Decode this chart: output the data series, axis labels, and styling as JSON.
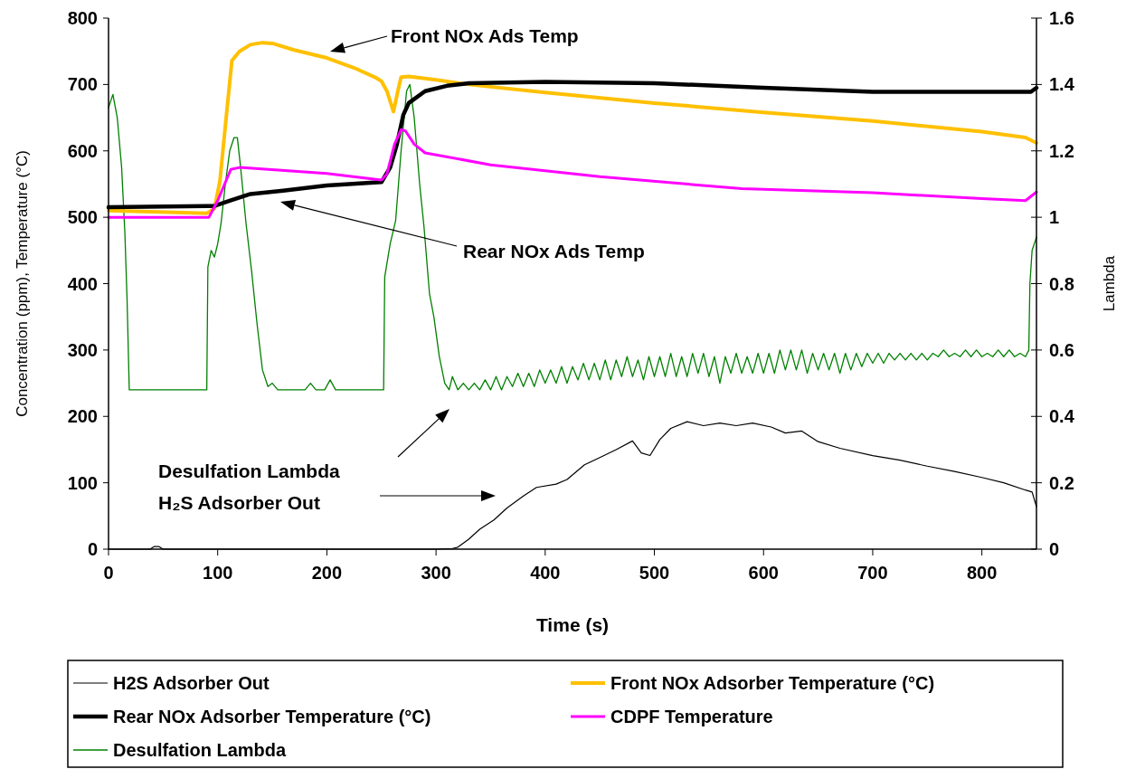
{
  "chart_data": {
    "type": "line",
    "xlabel": "Time (s)",
    "ylabel": "Concentration (ppm), Temperature (°C)",
    "y2label": "Lambda",
    "xlim": [
      0,
      850
    ],
    "xticks": [
      0,
      100,
      200,
      300,
      400,
      500,
      600,
      700,
      800
    ],
    "ylim": [
      0,
      800
    ],
    "yticks": [
      0,
      100,
      200,
      300,
      400,
      500,
      600,
      700,
      800
    ],
    "y2lim": [
      0,
      1.6
    ],
    "y2ticks": [
      0,
      0.2,
      0.4,
      0.6,
      0.8,
      1,
      1.2,
      1.4,
      1.6
    ],
    "legend": "bottom",
    "annotations": [
      "Front NOx Ads Temp",
      "Rear NOx Ads Temp",
      "Desulfation Lambda",
      "H₂S Adsorber Out"
    ],
    "series": [
      {
        "name": "H2S Adsorber Out",
        "color": "#000000",
        "x": [
          0,
          38,
          42,
          46,
          50,
          100,
          200,
          300,
          315,
          320,
          330,
          340,
          353,
          365,
          380,
          392,
          410,
          420,
          436,
          450,
          465,
          480,
          488,
          496,
          505,
          515,
          530,
          545,
          560,
          575,
          590,
          607,
          620,
          635,
          650,
          670,
          700,
          725,
          750,
          775,
          800,
          820,
          840,
          846,
          850
        ],
        "values": [
          0,
          0,
          4,
          4,
          0,
          0,
          0,
          0,
          1,
          3,
          15,
          30,
          44,
          62,
          80,
          93,
          98,
          105,
          127,
          138,
          150,
          163,
          145,
          141,
          165,
          182,
          192,
          186,
          190,
          186,
          190,
          184,
          175,
          178,
          162,
          152,
          141,
          134,
          125,
          117,
          108,
          100,
          89,
          86,
          64
        ]
      },
      {
        "name": "Front NOx Adsorber Temperature (°C)",
        "color": "#ffc000",
        "x": [
          0,
          90,
          97,
          102,
          108,
          113,
          120,
          130,
          141,
          150,
          170,
          200,
          225,
          244,
          250,
          255,
          261,
          265,
          268,
          275,
          300,
          330,
          400,
          500,
          600,
          700,
          800,
          840,
          850
        ],
        "values": [
          510,
          506,
          513,
          554,
          654,
          736,
          750,
          760,
          763,
          762,
          752,
          740,
          725,
          711,
          705,
          690,
          659,
          690,
          711,
          712,
          707,
          700,
          688,
          672,
          658,
          645,
          629,
          620,
          612
        ]
      },
      {
        "name": "Rear NOx Adsorber Temperature (°C)",
        "color": "#000000",
        "x": [
          0,
          90,
          97,
          111,
          130,
          160,
          200,
          250,
          258,
          264,
          270,
          275,
          290,
          310,
          330,
          400,
          500,
          600,
          700,
          800,
          845,
          850
        ],
        "values": [
          515,
          517,
          517,
          525,
          535,
          540,
          548,
          553,
          575,
          609,
          654,
          672,
          690,
          698,
          702,
          704,
          702,
          695,
          689,
          689,
          689,
          695
        ]
      },
      {
        "name": "CDPF Temperature",
        "color": "#ff00ff",
        "x": [
          0,
          92,
          100,
          112,
          120,
          200,
          250,
          255,
          262,
          268,
          272,
          280,
          290,
          350,
          450,
          580,
          700,
          800,
          840,
          850
        ],
        "values": [
          500,
          500,
          525,
          572,
          575,
          566,
          556,
          565,
          610,
          632,
          630,
          610,
          597,
          579,
          561,
          543,
          537,
          528,
          525,
          538
        ]
      },
      {
        "name": "Desulfation Lambda",
        "color": "#008000",
        "axis": "y2",
        "x": [
          0,
          4,
          8,
          12,
          15,
          17,
          19,
          40,
          60,
          90,
          91,
          94,
          97,
          100,
          103,
          107,
          111,
          115,
          118,
          121,
          126,
          131,
          136,
          141,
          146,
          150,
          155,
          180,
          185,
          190,
          198,
          203,
          208,
          252,
          253,
          258,
          263,
          268,
          273,
          276,
          280,
          285,
          289,
          294,
          298,
          303,
          308,
          312,
          315,
          320,
          325,
          330,
          335,
          340,
          345,
          350,
          355,
          360,
          365,
          370,
          375,
          380,
          385,
          390,
          395,
          400,
          405,
          410,
          415,
          420,
          425,
          430,
          435,
          440,
          445,
          450,
          455,
          460,
          465,
          470,
          475,
          480,
          485,
          490,
          495,
          500,
          505,
          510,
          515,
          520,
          525,
          530,
          535,
          540,
          545,
          550,
          555,
          560,
          565,
          570,
          575,
          580,
          585,
          590,
          595,
          600,
          605,
          610,
          615,
          620,
          625,
          630,
          635,
          640,
          645,
          650,
          655,
          660,
          665,
          670,
          675,
          680,
          685,
          690,
          695,
          700,
          705,
          710,
          715,
          720,
          725,
          730,
          735,
          740,
          745,
          750,
          755,
          760,
          765,
          770,
          775,
          780,
          785,
          790,
          795,
          800,
          805,
          810,
          815,
          820,
          825,
          830,
          835,
          840,
          843,
          844,
          846,
          850
        ],
        "values": [
          1.33,
          1.37,
          1.3,
          1.15,
          0.95,
          0.75,
          0.48,
          0.48,
          0.48,
          0.48,
          0.85,
          0.9,
          0.88,
          0.92,
          0.98,
          1.1,
          1.2,
          1.24,
          1.24,
          1.15,
          0.98,
          0.84,
          0.68,
          0.54,
          0.49,
          0.5,
          0.48,
          0.48,
          0.5,
          0.48,
          0.48,
          0.51,
          0.48,
          0.48,
          0.82,
          0.92,
          0.99,
          1.2,
          1.38,
          1.4,
          1.3,
          1.1,
          0.97,
          0.77,
          0.7,
          0.58,
          0.5,
          0.48,
          0.52,
          0.48,
          0.5,
          0.48,
          0.5,
          0.48,
          0.51,
          0.48,
          0.52,
          0.48,
          0.52,
          0.49,
          0.53,
          0.49,
          0.53,
          0.49,
          0.54,
          0.5,
          0.54,
          0.5,
          0.55,
          0.5,
          0.55,
          0.51,
          0.56,
          0.51,
          0.56,
          0.51,
          0.57,
          0.51,
          0.57,
          0.52,
          0.58,
          0.52,
          0.57,
          0.51,
          0.58,
          0.52,
          0.58,
          0.52,
          0.59,
          0.52,
          0.58,
          0.52,
          0.59,
          0.53,
          0.59,
          0.52,
          0.58,
          0.5,
          0.58,
          0.53,
          0.59,
          0.53,
          0.58,
          0.53,
          0.59,
          0.53,
          0.59,
          0.53,
          0.6,
          0.54,
          0.6,
          0.54,
          0.6,
          0.53,
          0.59,
          0.54,
          0.59,
          0.54,
          0.59,
          0.53,
          0.59,
          0.54,
          0.59,
          0.55,
          0.59,
          0.56,
          0.59,
          0.56,
          0.59,
          0.57,
          0.59,
          0.57,
          0.59,
          0.57,
          0.59,
          0.57,
          0.59,
          0.58,
          0.6,
          0.58,
          0.59,
          0.58,
          0.6,
          0.58,
          0.6,
          0.58,
          0.59,
          0.58,
          0.6,
          0.58,
          0.6,
          0.58,
          0.59,
          0.58,
          0.6,
          0.8,
          0.9,
          0.94
        ]
      }
    ]
  }
}
